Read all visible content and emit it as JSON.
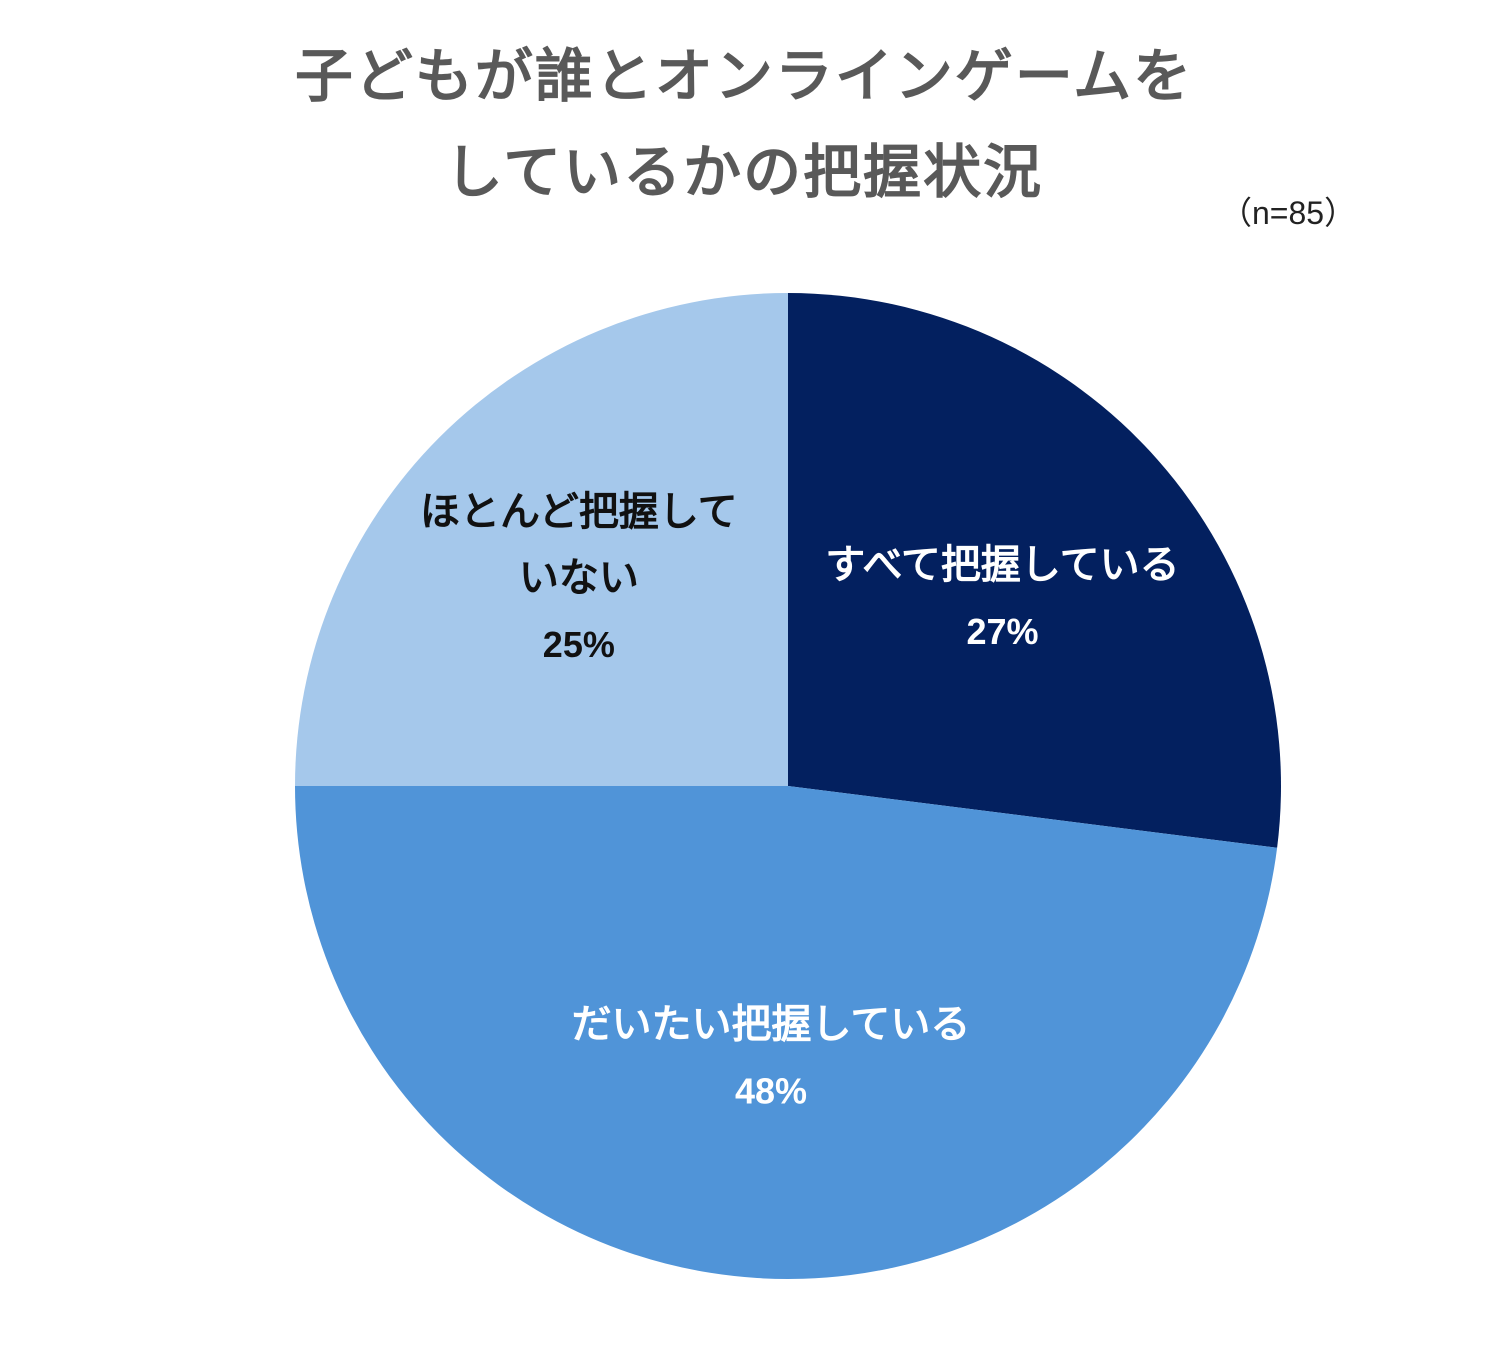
{
  "chart_data": {
    "type": "pie",
    "title_lines": [
      "子どもが誰とオンラインゲームを",
      "しているかの把握状況"
    ],
    "sample_note": "（n=85）",
    "categories": [
      "すべて把握している",
      "だいたい把握している",
      "ほとんど把握していない"
    ],
    "label_lines": [
      [
        "すべて把握している"
      ],
      [
        "だいたい把握している"
      ],
      [
        "ほとんど把握して",
        "いない"
      ]
    ],
    "values": [
      27,
      48,
      25
    ],
    "value_labels": [
      "27%",
      "48%",
      "25%"
    ],
    "colors": [
      "#03205F",
      "#5094D8",
      "#A5C8EB"
    ],
    "label_colors": [
      "#ffffff",
      "#ffffff",
      "#111111"
    ],
    "start_angle_deg": 0,
    "direction": "clockwise",
    "legend": "none"
  }
}
